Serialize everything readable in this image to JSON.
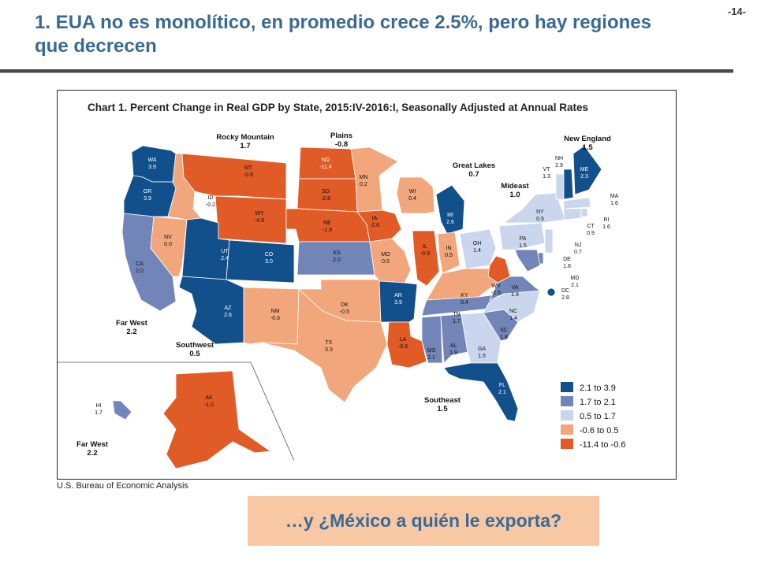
{
  "slide": {
    "page_number": "-14-",
    "title": "1. EUA no es monolítico, en promedio crece 2.5%, pero hay regiones que decrecen",
    "source": "U.S. Bureau of Economic Analysis",
    "callout": "…y ¿México a quién le exporta?"
  },
  "map": {
    "title": "Chart 1. Percent Change in Real GDP by State, 2015:IV-2016:I, Seasonally Adjusted at Annual Rates",
    "colors": {
      "c1": "#12508c",
      "c2": "#7285b8",
      "c3": "#c9d6ee",
      "c4": "#f1a77b",
      "c5": "#e15b26"
    },
    "legend": [
      {
        "label": "2.1 to 3.9",
        "class": "c1"
      },
      {
        "label": "1.7 to 2.1",
        "class": "c2"
      },
      {
        "label": "0.5 to 1.7",
        "class": "c3"
      },
      {
        "label": "-0.6 to 0.5",
        "class": "c4"
      },
      {
        "label": "-11.4 to -0.6",
        "class": "c5"
      }
    ],
    "regions": [
      {
        "id": "rocky",
        "name": "Rocky Mountain",
        "value": "1.7"
      },
      {
        "id": "plains",
        "name": "Plains",
        "value": "-0.8"
      },
      {
        "id": "greatlakes",
        "name": "Great Lakes",
        "value": "0.7"
      },
      {
        "id": "newengland",
        "name": "New England",
        "value": "1.5"
      },
      {
        "id": "mideast",
        "name": "Mideast",
        "value": "1.0"
      },
      {
        "id": "farwest",
        "name": "Far West",
        "value": "2.2"
      },
      {
        "id": "southwest",
        "name": "Southwest",
        "value": "0.5"
      },
      {
        "id": "southeast",
        "name": "Southeast",
        "value": "1.5"
      },
      {
        "id": "farwest2",
        "name": "Far West",
        "value": "2.2"
      }
    ],
    "states": [
      {
        "abbr": "WA",
        "value": "3.9",
        "class": "c1"
      },
      {
        "abbr": "OR",
        "value": "3.9",
        "class": "c1"
      },
      {
        "abbr": "CA",
        "value": "2.0",
        "class": "c2"
      },
      {
        "abbr": "NV",
        "value": "0.0",
        "class": "c4"
      },
      {
        "abbr": "ID",
        "value": "-0.2",
        "class": "c4"
      },
      {
        "abbr": "MT",
        "value": "-0.9",
        "class": "c5"
      },
      {
        "abbr": "WY",
        "value": "-4.9",
        "class": "c5"
      },
      {
        "abbr": "UT",
        "value": "2.4",
        "class": "c1"
      },
      {
        "abbr": "CO",
        "value": "3.0",
        "class": "c1"
      },
      {
        "abbr": "AZ",
        "value": "2.6",
        "class": "c1"
      },
      {
        "abbr": "NM",
        "value": "-0.6",
        "class": "c4"
      },
      {
        "abbr": "ND",
        "value": "-11.4",
        "class": "c5"
      },
      {
        "abbr": "SD",
        "value": "-2.8",
        "class": "c5"
      },
      {
        "abbr": "NE",
        "value": "-1.9",
        "class": "c5"
      },
      {
        "abbr": "KS",
        "value": "2.0",
        "class": "c2"
      },
      {
        "abbr": "OK",
        "value": "-0.5",
        "class": "c4"
      },
      {
        "abbr": "TX",
        "value": "0.3",
        "class": "c4"
      },
      {
        "abbr": "MN",
        "value": "0.2",
        "class": "c4"
      },
      {
        "abbr": "IA",
        "value": "-2.6",
        "class": "c5"
      },
      {
        "abbr": "MO",
        "value": "0.5",
        "class": "c4"
      },
      {
        "abbr": "AR",
        "value": "3.9",
        "class": "c1"
      },
      {
        "abbr": "LA",
        "value": "-0.9",
        "class": "c5"
      },
      {
        "abbr": "WI",
        "value": "0.4",
        "class": "c4"
      },
      {
        "abbr": "IL",
        "value": "-0.9",
        "class": "c5"
      },
      {
        "abbr": "MI",
        "value": "2.6",
        "class": "c1"
      },
      {
        "abbr": "IN",
        "value": "0.5",
        "class": "c4"
      },
      {
        "abbr": "OH",
        "value": "1.4",
        "class": "c3"
      },
      {
        "abbr": "KY",
        "value": "0.4",
        "class": "c4"
      },
      {
        "abbr": "TN",
        "value": "1.7",
        "class": "c2"
      },
      {
        "abbr": "MS",
        "value": "2.1",
        "class": "c2"
      },
      {
        "abbr": "AL",
        "value": "1.9",
        "class": "c2"
      },
      {
        "abbr": "GA",
        "value": "1.5",
        "class": "c3"
      },
      {
        "abbr": "FL",
        "value": "2.1",
        "class": "c1"
      },
      {
        "abbr": "SC",
        "value": "1.8",
        "class": "c2"
      },
      {
        "abbr": "NC",
        "value": "1.4",
        "class": "c3"
      },
      {
        "abbr": "VA",
        "value": "1.9",
        "class": "c2"
      },
      {
        "abbr": "WV",
        "value": "-2.5",
        "class": "c5"
      },
      {
        "abbr": "PA",
        "value": "1.5",
        "class": "c3"
      },
      {
        "abbr": "NY",
        "value": "0.5",
        "class": "c3"
      },
      {
        "abbr": "VT",
        "value": "1.3",
        "class": "c3"
      },
      {
        "abbr": "NH",
        "value": "2.9",
        "class": "c1"
      },
      {
        "abbr": "ME",
        "value": "2.3",
        "class": "c1"
      },
      {
        "abbr": "MA",
        "value": "1.6",
        "class": "c3"
      },
      {
        "abbr": "RI",
        "value": "1.6",
        "class": "c3"
      },
      {
        "abbr": "CT",
        "value": "0.9",
        "class": "c3"
      },
      {
        "abbr": "NJ",
        "value": "0.7",
        "class": "c3"
      },
      {
        "abbr": "DE",
        "value": "1.8",
        "class": "c2"
      },
      {
        "abbr": "MD",
        "value": "2.1",
        "class": "c2"
      },
      {
        "abbr": "DC",
        "value": "2.8",
        "class": "c1"
      },
      {
        "abbr": "AK",
        "value": "-1.0",
        "class": "c5"
      },
      {
        "abbr": "HI",
        "value": "1.7",
        "class": "c2"
      }
    ]
  }
}
